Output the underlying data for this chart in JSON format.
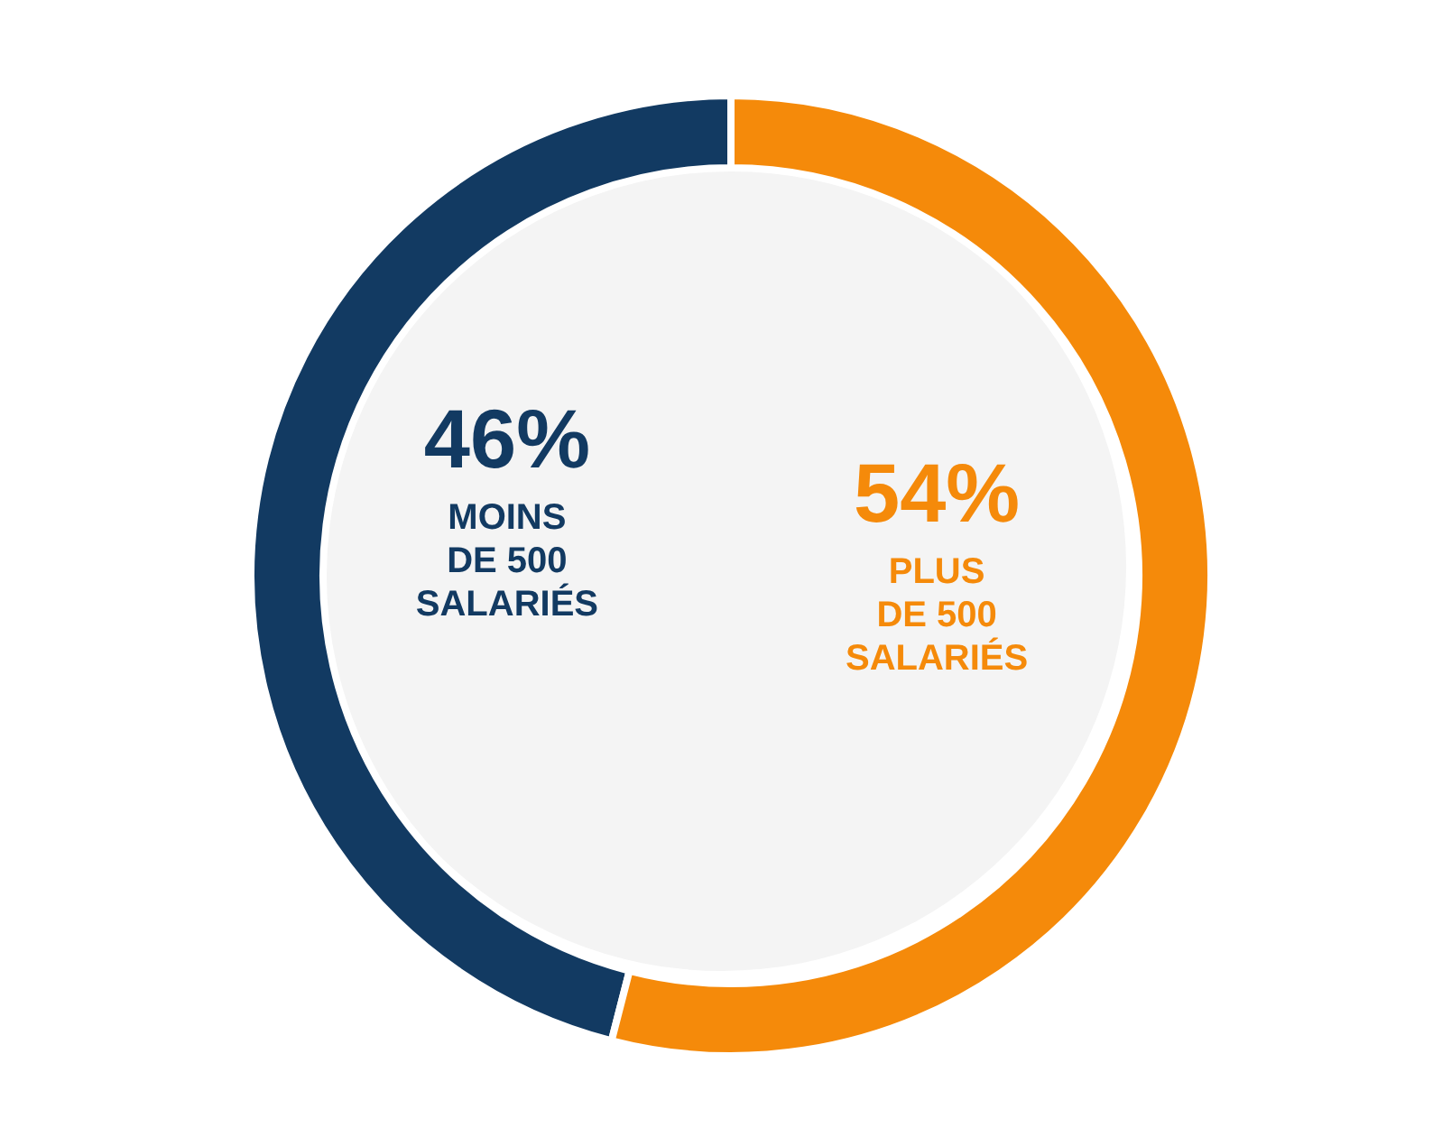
{
  "chart_data": {
    "type": "donut",
    "categories": [
      "MOINS\nDE 500\nSALARIÉS",
      "PLUS\nDE 500\nSALARIÉS"
    ],
    "values": [
      46,
      54
    ],
    "colors": [
      "#123a62",
      "#f58a0a"
    ],
    "value_labels": [
      "46%",
      "54%"
    ]
  }
}
